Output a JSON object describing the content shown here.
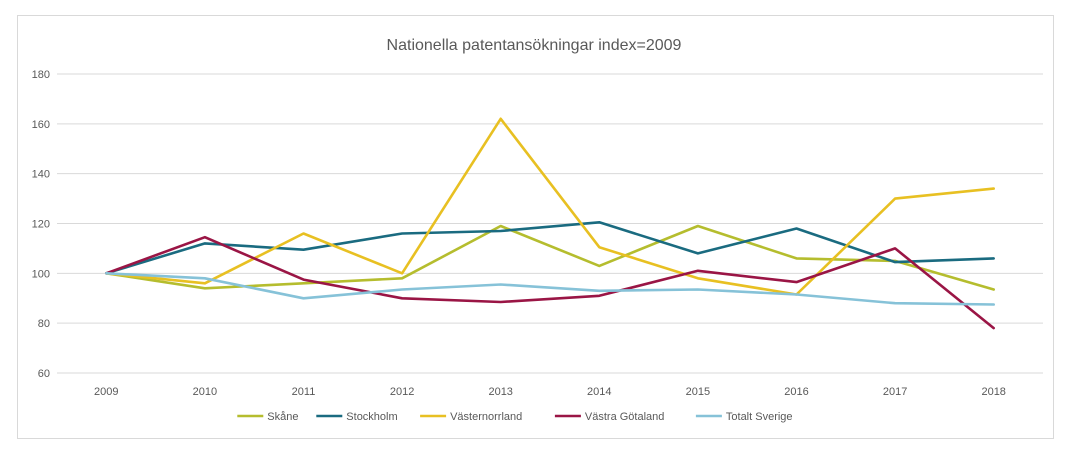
{
  "chart_data": {
    "type": "line",
    "title": "Nationella patentansökningar index=2009",
    "xlabel": "",
    "ylabel": "",
    "categories": [
      "2009",
      "2010",
      "2011",
      "2012",
      "2013",
      "2014",
      "2015",
      "2016",
      "2017",
      "2018"
    ],
    "ylim": [
      60,
      180
    ],
    "yticks": [
      60,
      80,
      100,
      120,
      140,
      160,
      180
    ],
    "grid": true,
    "legend": "bottom",
    "series": [
      {
        "name": "Skåne",
        "color": "#b5bd2e",
        "values": [
          100,
          94,
          96,
          98,
          119,
          103,
          119,
          106,
          105,
          93.5
        ]
      },
      {
        "name": "Stockholm",
        "color": "#1a6b80",
        "values": [
          100,
          112,
          109.5,
          116,
          117,
          120.5,
          108,
          118,
          104.5,
          106
        ]
      },
      {
        "name": "Västernorrland",
        "color": "#e8c022",
        "values": [
          100,
          96,
          116,
          100,
          162,
          110.5,
          98,
          91.5,
          130,
          134
        ]
      },
      {
        "name": "Västra Götaland",
        "color": "#9a1545",
        "values": [
          100,
          114.5,
          97.5,
          90,
          88.5,
          91,
          101,
          96.5,
          110,
          78
        ]
      },
      {
        "name": "Totalt Sverige",
        "color": "#86c2d8",
        "values": [
          100,
          98,
          90,
          93.5,
          95.5,
          93,
          93.5,
          91.5,
          88,
          87.5
        ]
      }
    ]
  }
}
